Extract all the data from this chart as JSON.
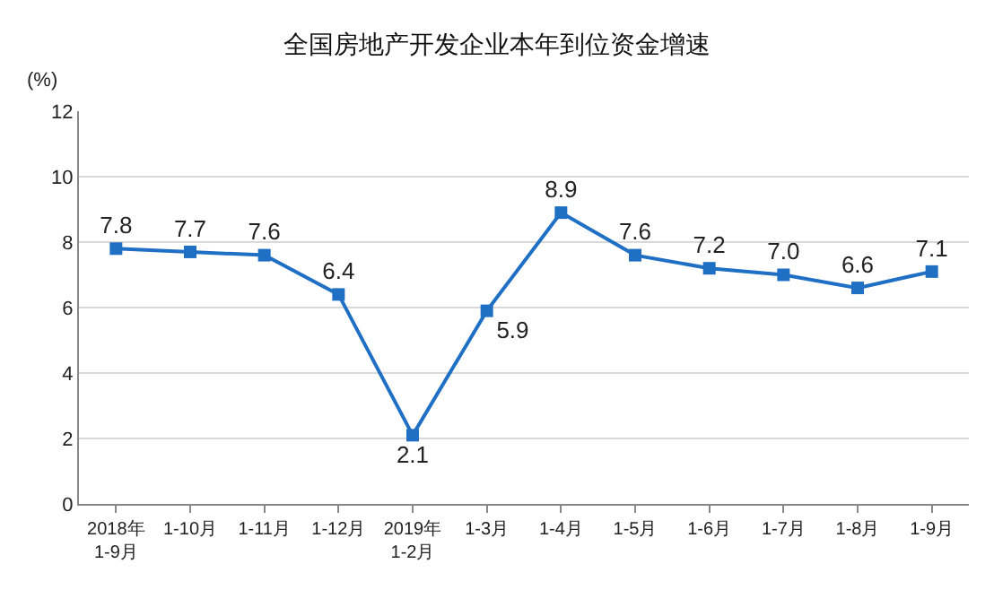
{
  "chart_data": {
    "type": "line",
    "title": "全国房地产开发企业本年到位资金增速",
    "ylabel": "(%)",
    "categories": [
      "2018年\n1-9月",
      "1-10月",
      "1-11月",
      "1-12月",
      "2019年\n1-2月",
      "1-3月",
      "1-4月",
      "1-5月",
      "1-6月",
      "1-7月",
      "1-8月",
      "1-9月"
    ],
    "series": [
      {
        "color": "#1f6fc4",
        "values": [
          7.8,
          7.7,
          7.6,
          6.4,
          2.1,
          5.9,
          8.9,
          7.6,
          7.2,
          7.0,
          6.6,
          7.1
        ],
        "value_labels": [
          "7.8",
          "7.7",
          "7.6",
          "6.4",
          "2.1",
          "5.9",
          "8.9",
          "7.6",
          "7.2",
          "7.0",
          "6.6",
          "7.1"
        ]
      }
    ],
    "ylim": [
      0,
      12
    ],
    "yticks": [
      0,
      2,
      4,
      6,
      8,
      10,
      12
    ],
    "grid": "y",
    "marker": "square",
    "line_style": "solid"
  }
}
